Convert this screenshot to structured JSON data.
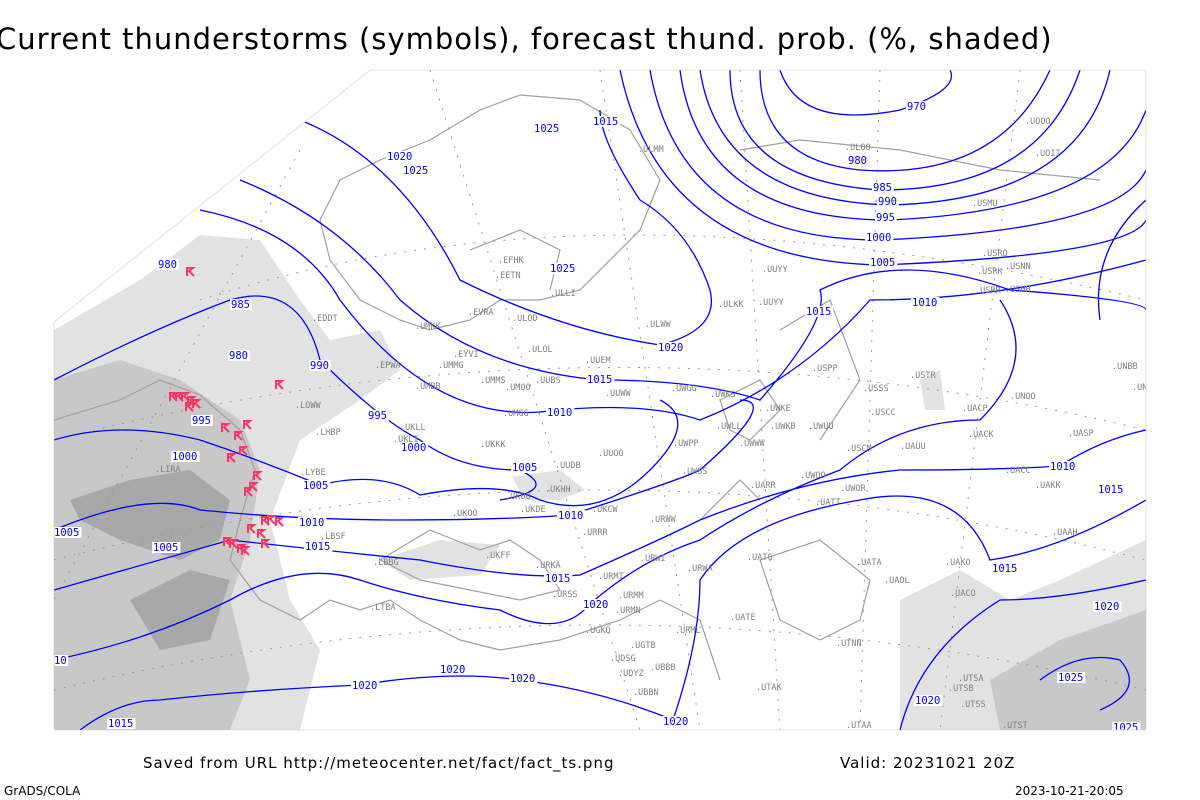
{
  "title": "Current thunderstorms (symbols), forecast thund. prob. (%, shaded)",
  "footer": {
    "saved_from": "Saved from URL http://meteocenter.net/fact/fact_ts.png",
    "valid": "Valid: 20231021 20Z",
    "software": "GrADS/COLA",
    "timestamp": "2023-10-21-20:05"
  },
  "colors": {
    "isobar": "#0000ff",
    "coastline": "#a0a0a0",
    "station_label": "#808080",
    "thunderstorm_symbol": "#ff3366",
    "shading_light": "#e2e2e2",
    "shading_mid": "#c8c8c8",
    "shading_dark": "#a8a8a8"
  },
  "legend_symbol": "thunderstorm-symbol",
  "isobar_labels": [
    "970",
    "980",
    "985",
    "990",
    "995",
    "1000",
    "1005",
    "1010",
    "1015",
    "1020",
    "1015",
    "1010",
    "1005",
    "1000",
    "995",
    "990",
    "985",
    "980",
    "980",
    "995",
    "1000",
    "1005",
    "1010",
    "1015",
    "1020",
    "1005",
    "1005",
    "1010",
    "1015",
    "1020",
    "1020",
    "1020",
    "1020",
    "1015",
    "10",
    "1010",
    "1015",
    "1015",
    "1020",
    "1020",
    "1025",
    "1025",
    "1020",
    "1025",
    "1025",
    "1015",
    "1025"
  ],
  "stations": [
    "ULMM",
    "ULOO",
    "UUYY",
    "ULKK",
    "UUYY",
    "ULWW",
    "ULOD",
    "EVRA",
    "UMKK",
    "ULOL",
    "UUEM",
    "EYVI",
    "UMMG",
    "UMMS",
    "UMOO",
    "UUBS",
    "UUWW",
    "UWGG",
    "UWKS",
    "UWKE",
    "UWKB",
    "UWUU",
    "UWLL",
    "UWWW",
    "UMBB",
    "UMGG",
    "UKLL",
    "UKLI",
    "UKKK",
    "UUOO",
    "UWPP",
    "UUDB",
    "UWSS",
    "UKHH",
    "UKOO",
    "UKDE",
    "UKCW",
    "URWW",
    "URRR",
    "UKOO",
    "UARR",
    "UWOO",
    "UATT",
    "UWOR",
    "URMT",
    "URMM",
    "URMN",
    "URWI",
    "URWA",
    "UATG",
    "UATE",
    "URML",
    "UGTB",
    "UBBB",
    "UBBN",
    "UTAK",
    "UTNN",
    "UATA",
    "UAOL",
    "UACC",
    "UAKK",
    "UAAH",
    "UAKO",
    "UACO",
    "USSS",
    "USCC",
    "USCM",
    "UAUU",
    "USTR",
    "USPP",
    "UNOO",
    "USMU",
    "USRO",
    "USRK",
    "USNN",
    "USRR",
    "USHH",
    "UOOO",
    "UOII",
    "EFHK",
    "EETN",
    "ULLI",
    "EDDT",
    "EPWA",
    "LOWW",
    "LHBP",
    "LIRA",
    "LYBE",
    "LBSF",
    "LBBG",
    "LTBA",
    "UKFF",
    "URKA",
    "URSS",
    "UGKO",
    "UDSG",
    "UDYZ",
    "UACK",
    "UACP",
    "UASP",
    "UNBB",
    "UNTT",
    "UTSA",
    "UTSB",
    "UTSS",
    "UTST",
    "UTAA"
  ]
}
